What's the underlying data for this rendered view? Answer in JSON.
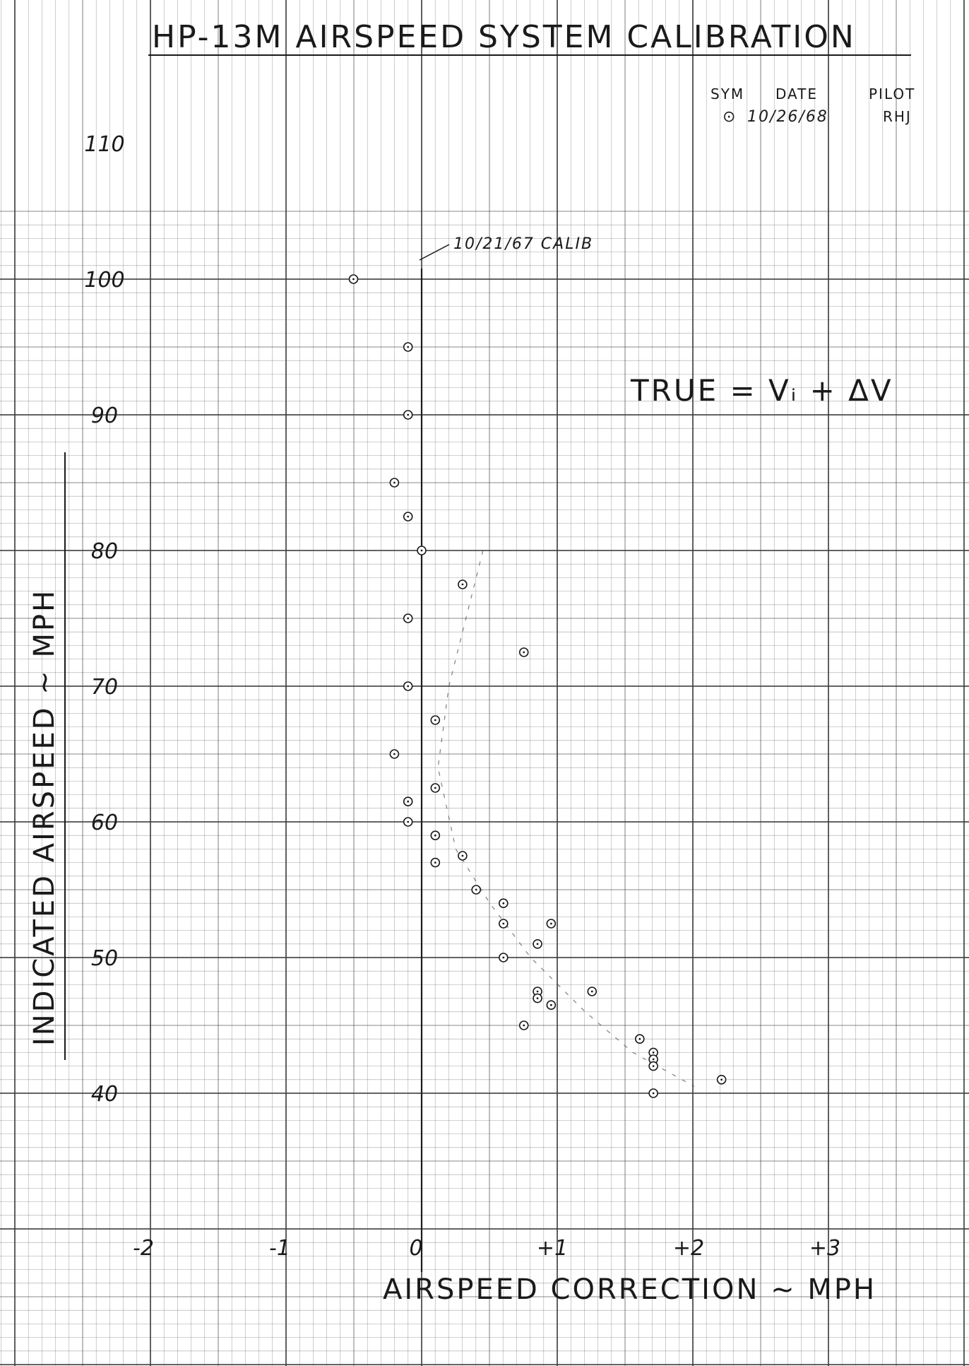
{
  "chart_data": {
    "type": "scatter",
    "title": "HP-13M AIRSPEED SYSTEM CALIBRATION",
    "xlabel": "AIRSPEED CORRECTION ~ MPH",
    "ylabel": "INDICATED AIRSPEED ~ MPH",
    "xlim": [
      -2,
      3.3
    ],
    "ylim": [
      30,
      112
    ],
    "x_ticks": [
      "-2",
      "-1",
      "0",
      "+1",
      "+2",
      "+3"
    ],
    "y_ticks": [
      "40",
      "50",
      "60",
      "70",
      "80",
      "90",
      "100",
      "110"
    ],
    "grid": true,
    "legend": {
      "headers": [
        "SYM",
        "DATE",
        "PILOT"
      ],
      "entries": [
        {
          "symbol": "⊙",
          "date": "10/26/68",
          "pilot": "RHJ"
        }
      ]
    },
    "annotations": {
      "previous_calibration": "10/21/67 CALIB",
      "formula": "TRUE = Vᵢ + ΔV"
    },
    "series": [
      {
        "marker": "circle-dot",
        "points": [
          {
            "x": -0.5,
            "y": 100
          },
          {
            "x": -0.1,
            "y": 95
          },
          {
            "x": -0.1,
            "y": 90
          },
          {
            "x": -0.2,
            "y": 85
          },
          {
            "x": -0.1,
            "y": 82.5
          },
          {
            "x": 0.0,
            "y": 80
          },
          {
            "x": 0.3,
            "y": 77.5
          },
          {
            "x": -0.1,
            "y": 75
          },
          {
            "x": 0.75,
            "y": 72.5
          },
          {
            "x": -0.1,
            "y": 70
          },
          {
            "x": 0.1,
            "y": 67.5
          },
          {
            "x": -0.2,
            "y": 65
          },
          {
            "x": 0.1,
            "y": 62.5
          },
          {
            "x": -0.1,
            "y": 61.5
          },
          {
            "x": -0.1,
            "y": 60
          },
          {
            "x": 0.1,
            "y": 59
          },
          {
            "x": 0.3,
            "y": 57.5
          },
          {
            "x": 0.1,
            "y": 57
          },
          {
            "x": 0.4,
            "y": 55
          },
          {
            "x": 0.6,
            "y": 54
          },
          {
            "x": 0.6,
            "y": 52.5
          },
          {
            "x": 0.95,
            "y": 52.5
          },
          {
            "x": 0.85,
            "y": 51
          },
          {
            "x": 0.6,
            "y": 50
          },
          {
            "x": 0.85,
            "y": 47.5
          },
          {
            "x": 1.25,
            "y": 47.5
          },
          {
            "x": 0.85,
            "y": 47
          },
          {
            "x": 0.95,
            "y": 46.5
          },
          {
            "x": 0.75,
            "y": 45
          },
          {
            "x": 1.6,
            "y": 44
          },
          {
            "x": 1.7,
            "y": 43
          },
          {
            "x": 1.7,
            "y": 42.5
          },
          {
            "x": 1.7,
            "y": 42
          },
          {
            "x": 2.2,
            "y": 41
          },
          {
            "x": 1.7,
            "y": 40
          }
        ]
      }
    ]
  }
}
